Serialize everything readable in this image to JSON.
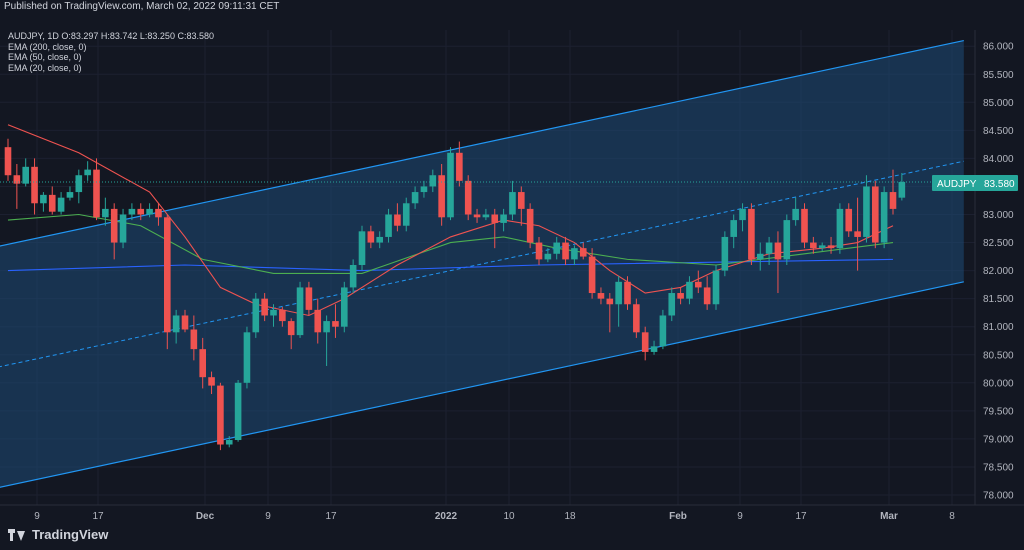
{
  "header": {
    "published": "Published on TradingView.com, March 02, 2022 09:11:31 CET",
    "symbol_line": "AUDJPY, 1D  O:83.297  H:83.742  L:83.250  C:83.580"
  },
  "indicators": [
    "EMA (200, close, 0)",
    "EMA (50, close, 0)",
    "EMA (20, close, 0)"
  ],
  "brand": "TradingView",
  "price_tag": {
    "symbol": "AUDJPY",
    "value": "83.580"
  },
  "colors": {
    "background": "#131722",
    "up": "#26a69a",
    "down": "#ef5350",
    "ema200": "#2962ff",
    "ema50": "#4caf50",
    "ema20": "#ef5350",
    "channel_line": "#2196f3",
    "channel_fill": "#1e4a77"
  },
  "chart_data": {
    "type": "candlestick",
    "y_ticks": [
      "86.000",
      "85.500",
      "85.000",
      "84.500",
      "84.000",
      "83.500",
      "83.000",
      "82.500",
      "82.000",
      "81.500",
      "81.000",
      "80.500",
      "80.000",
      "79.500",
      "79.000",
      "78.500",
      "78.000"
    ],
    "x_ticks": [
      "9",
      "17",
      "Dec",
      "9",
      "17",
      "2022",
      "10",
      "18",
      "Feb",
      "9",
      "17",
      "Mar",
      "8"
    ],
    "candles": [
      [
        84.2,
        84.35,
        83.6,
        83.7
      ],
      [
        83.7,
        83.9,
        83.1,
        83.55
      ],
      [
        83.55,
        84.0,
        83.5,
        83.85
      ],
      [
        83.85,
        84.0,
        83.0,
        83.2
      ],
      [
        83.2,
        83.4,
        83.05,
        83.35
      ],
      [
        83.35,
        83.5,
        83.0,
        83.05
      ],
      [
        83.05,
        83.4,
        83.0,
        83.3
      ],
      [
        83.3,
        83.5,
        83.25,
        83.4
      ],
      [
        83.4,
        83.8,
        83.2,
        83.7
      ],
      [
        83.7,
        83.95,
        83.6,
        83.8
      ],
      [
        83.8,
        84.0,
        82.9,
        82.95
      ],
      [
        82.95,
        83.3,
        82.8,
        83.1
      ],
      [
        83.1,
        83.2,
        82.2,
        82.5
      ],
      [
        82.5,
        83.1,
        82.4,
        83.0
      ],
      [
        83.0,
        83.2,
        82.9,
        83.1
      ],
      [
        83.1,
        83.2,
        82.9,
        83.0
      ],
      [
        83.0,
        83.2,
        82.95,
        83.1
      ],
      [
        83.1,
        83.2,
        82.8,
        82.95
      ],
      [
        82.95,
        83.0,
        80.6,
        80.9
      ],
      [
        80.9,
        81.3,
        80.7,
        81.2
      ],
      [
        81.2,
        81.3,
        80.9,
        80.95
      ],
      [
        80.95,
        81.2,
        80.4,
        80.6
      ],
      [
        80.6,
        80.8,
        79.9,
        80.1
      ],
      [
        80.1,
        80.2,
        79.8,
        79.95
      ],
      [
        79.95,
        80.0,
        78.8,
        78.9
      ],
      [
        78.9,
        79.05,
        78.85,
        78.98
      ],
      [
        78.98,
        80.05,
        78.95,
        80.0
      ],
      [
        80.0,
        81.0,
        79.9,
        80.9
      ],
      [
        80.9,
        81.6,
        80.8,
        81.5
      ],
      [
        81.5,
        81.6,
        81.1,
        81.2
      ],
      [
        81.2,
        81.4,
        81.0,
        81.3
      ],
      [
        81.3,
        81.35,
        81.0,
        81.1
      ],
      [
        81.1,
        81.15,
        80.6,
        80.85
      ],
      [
        80.85,
        81.8,
        80.8,
        81.7
      ],
      [
        81.7,
        81.8,
        81.2,
        81.3
      ],
      [
        81.3,
        81.5,
        80.7,
        80.9
      ],
      [
        80.9,
        81.2,
        80.3,
        81.1
      ],
      [
        81.1,
        81.4,
        80.8,
        81.0
      ],
      [
        81.0,
        81.8,
        80.9,
        81.7
      ],
      [
        81.7,
        82.2,
        81.6,
        82.1
      ],
      [
        82.1,
        82.8,
        82.0,
        82.7
      ],
      [
        82.7,
        82.8,
        82.4,
        82.5
      ],
      [
        82.5,
        82.7,
        82.4,
        82.6
      ],
      [
        82.6,
        83.1,
        82.5,
        83.0
      ],
      [
        83.0,
        83.2,
        82.7,
        82.8
      ],
      [
        82.8,
        83.3,
        82.7,
        83.2
      ],
      [
        83.2,
        83.5,
        83.1,
        83.4
      ],
      [
        83.4,
        83.6,
        83.3,
        83.5
      ],
      [
        83.5,
        83.8,
        83.4,
        83.7
      ],
      [
        83.7,
        83.9,
        82.8,
        82.95
      ],
      [
        82.95,
        84.2,
        82.9,
        84.1
      ],
      [
        84.1,
        84.3,
        83.5,
        83.6
      ],
      [
        83.6,
        83.7,
        82.9,
        83.0
      ],
      [
        83.0,
        83.1,
        82.85,
        82.95
      ],
      [
        82.95,
        83.1,
        82.9,
        83.0
      ],
      [
        83.0,
        83.1,
        82.4,
        82.85
      ],
      [
        82.85,
        83.1,
        82.7,
        83.0
      ],
      [
        83.0,
        83.6,
        82.9,
        83.4
      ],
      [
        83.4,
        83.5,
        82.8,
        83.1
      ],
      [
        83.1,
        83.2,
        82.4,
        82.5
      ],
      [
        82.5,
        82.6,
        82.1,
        82.2
      ],
      [
        82.2,
        82.4,
        82.15,
        82.3
      ],
      [
        82.3,
        82.6,
        82.2,
        82.5
      ],
      [
        82.5,
        82.6,
        82.1,
        82.2
      ],
      [
        82.2,
        82.45,
        82.1,
        82.4
      ],
      [
        82.4,
        82.5,
        82.2,
        82.25
      ],
      [
        82.25,
        82.4,
        81.5,
        81.6
      ],
      [
        81.6,
        81.7,
        81.4,
        81.5
      ],
      [
        81.5,
        81.6,
        80.9,
        81.4
      ],
      [
        81.4,
        81.9,
        81.0,
        81.8
      ],
      [
        81.8,
        81.9,
        81.3,
        81.4
      ],
      [
        81.4,
        81.5,
        80.8,
        80.9
      ],
      [
        80.9,
        81.0,
        80.4,
        80.55
      ],
      [
        80.55,
        80.75,
        80.5,
        80.65
      ],
      [
        80.65,
        81.3,
        80.6,
        81.2
      ],
      [
        81.2,
        81.7,
        81.1,
        81.6
      ],
      [
        81.6,
        81.7,
        81.4,
        81.5
      ],
      [
        81.5,
        81.9,
        81.4,
        81.8
      ],
      [
        81.8,
        82.0,
        81.6,
        81.7
      ],
      [
        81.7,
        81.9,
        81.3,
        81.4
      ],
      [
        81.4,
        82.1,
        81.3,
        82.0
      ],
      [
        82.0,
        82.7,
        81.9,
        82.6
      ],
      [
        82.6,
        83.0,
        82.4,
        82.9
      ],
      [
        82.9,
        83.2,
        82.7,
        83.1
      ],
      [
        83.1,
        83.2,
        82.1,
        82.2
      ],
      [
        82.2,
        82.5,
        82.0,
        82.3
      ],
      [
        82.3,
        82.6,
        82.1,
        82.5
      ],
      [
        82.5,
        82.7,
        81.6,
        82.2
      ],
      [
        82.2,
        83.0,
        82.1,
        82.9
      ],
      [
        82.9,
        83.3,
        82.8,
        83.1
      ],
      [
        83.1,
        83.2,
        82.4,
        82.5
      ],
      [
        82.5,
        82.6,
        82.3,
        82.4
      ],
      [
        82.4,
        82.5,
        82.35,
        82.45
      ],
      [
        82.45,
        82.6,
        82.3,
        82.4
      ],
      [
        82.4,
        83.2,
        82.3,
        83.1
      ],
      [
        83.1,
        83.2,
        82.6,
        82.7
      ],
      [
        82.7,
        83.3,
        82.0,
        82.6
      ],
      [
        82.6,
        83.7,
        82.5,
        83.5
      ],
      [
        83.5,
        83.6,
        82.4,
        82.5
      ],
      [
        82.5,
        83.5,
        82.4,
        83.4
      ],
      [
        83.4,
        83.8,
        83.0,
        83.1
      ],
      [
        83.3,
        83.74,
        83.25,
        83.58
      ]
    ],
    "ema200": [
      [
        0,
        82.0
      ],
      [
        20,
        82.1
      ],
      [
        40,
        82.0
      ],
      [
        60,
        82.1
      ],
      [
        80,
        82.15
      ],
      [
        100,
        82.2
      ]
    ],
    "ema50": [
      [
        0,
        82.9
      ],
      [
        8,
        83.0
      ],
      [
        15,
        82.8
      ],
      [
        22,
        82.2
      ],
      [
        30,
        81.95
      ],
      [
        40,
        81.95
      ],
      [
        50,
        82.5
      ],
      [
        56,
        82.6
      ],
      [
        62,
        82.4
      ],
      [
        70,
        82.2
      ],
      [
        80,
        82.1
      ],
      [
        90,
        82.3
      ],
      [
        100,
        82.5
      ]
    ],
    "ema20": [
      [
        0,
        84.6
      ],
      [
        8,
        84.1
      ],
      [
        16,
        83.4
      ],
      [
        20,
        82.6
      ],
      [
        24,
        81.7
      ],
      [
        28,
        81.4
      ],
      [
        34,
        81.2
      ],
      [
        38,
        81.5
      ],
      [
        44,
        82.1
      ],
      [
        50,
        82.6
      ],
      [
        56,
        82.9
      ],
      [
        60,
        82.8
      ],
      [
        64,
        82.5
      ],
      [
        68,
        82.0
      ],
      [
        72,
        81.6
      ],
      [
        76,
        81.7
      ],
      [
        80,
        82.0
      ],
      [
        86,
        82.3
      ],
      [
        92,
        82.4
      ],
      [
        96,
        82.5
      ],
      [
        100,
        82.8
      ]
    ],
    "channel": {
      "upper": [
        [
          -5,
          82.3
        ],
        [
          108,
          86.1
        ]
      ],
      "mid": [
        [
          -5,
          80.15
        ],
        [
          108,
          83.95
        ]
      ],
      "lower": [
        [
          -5,
          78.0
        ],
        [
          108,
          81.8
        ]
      ]
    },
    "ylim": [
      78.0,
      86.0
    ],
    "last_price": 83.58
  }
}
